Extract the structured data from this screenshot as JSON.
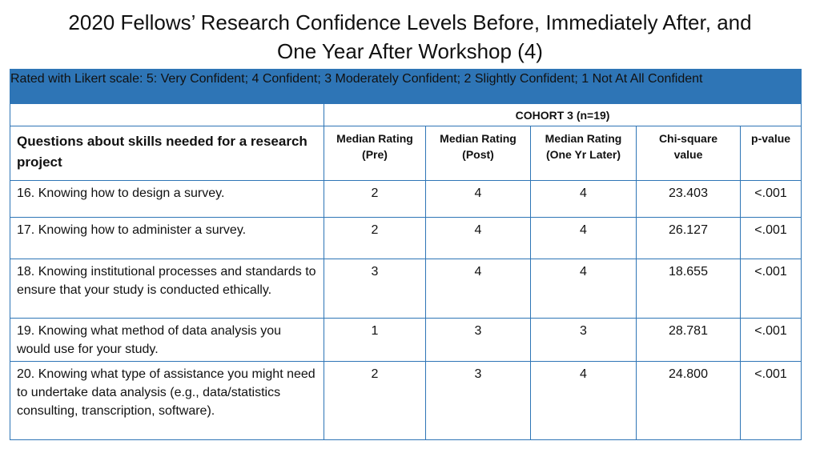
{
  "title_line1": "2020 Fellows’ Research Confidence Levels Before, Immediately After, and",
  "title_line2": "One Year After Workshop (4)",
  "scale_note": "Rated with Likert scale: 5: Very Confident; 4 Confident; 3 Moderately Confident; 2 Slightly Confident; 1 Not At All Confident",
  "cohort_label": "COHORT 3 (n=19)",
  "headers": {
    "question": "Questions about skills needed for a research project",
    "pre_line1": "Median Rating",
    "pre_line2": "(Pre)",
    "post_line1": "Median Rating",
    "post_line2": "(Post)",
    "later_line1": "Median Rating",
    "later_line2": "(One Yr Later)",
    "chi_line1": "Chi-square",
    "chi_line2": "value",
    "p": "p-value"
  },
  "rows": [
    {
      "question": "16. Knowing how to design a survey.",
      "pre": "2",
      "post": "4",
      "later": "4",
      "chi": "23.403",
      "p": "<.001"
    },
    {
      "question": "17. Knowing how to administer a survey.",
      "pre": "2",
      "post": "4",
      "later": "4",
      "chi": "26.127",
      "p": "<.001"
    },
    {
      "question": "18. Knowing institutional processes and standards to ensure that your study is conducted ethically.",
      "pre": "3",
      "post": "4",
      "later": "4",
      "chi": "18.655",
      "p": "<.001"
    },
    {
      "question": "19. Knowing what method of data analysis you would use for your study.",
      "pre": "1",
      "post": "3",
      "later": "3",
      "chi": "28.781",
      "p": "<.001"
    },
    {
      "question": "20. Knowing what type of assistance you might need to undertake data analysis (e.g., data/statistics consulting, transcription, software).",
      "pre": "2",
      "post": "3",
      "later": "4",
      "chi": "24.800",
      "p": "<.001"
    }
  ],
  "colors": {
    "accent": "#2e75b6",
    "text": "#111111",
    "background": "#ffffff"
  }
}
